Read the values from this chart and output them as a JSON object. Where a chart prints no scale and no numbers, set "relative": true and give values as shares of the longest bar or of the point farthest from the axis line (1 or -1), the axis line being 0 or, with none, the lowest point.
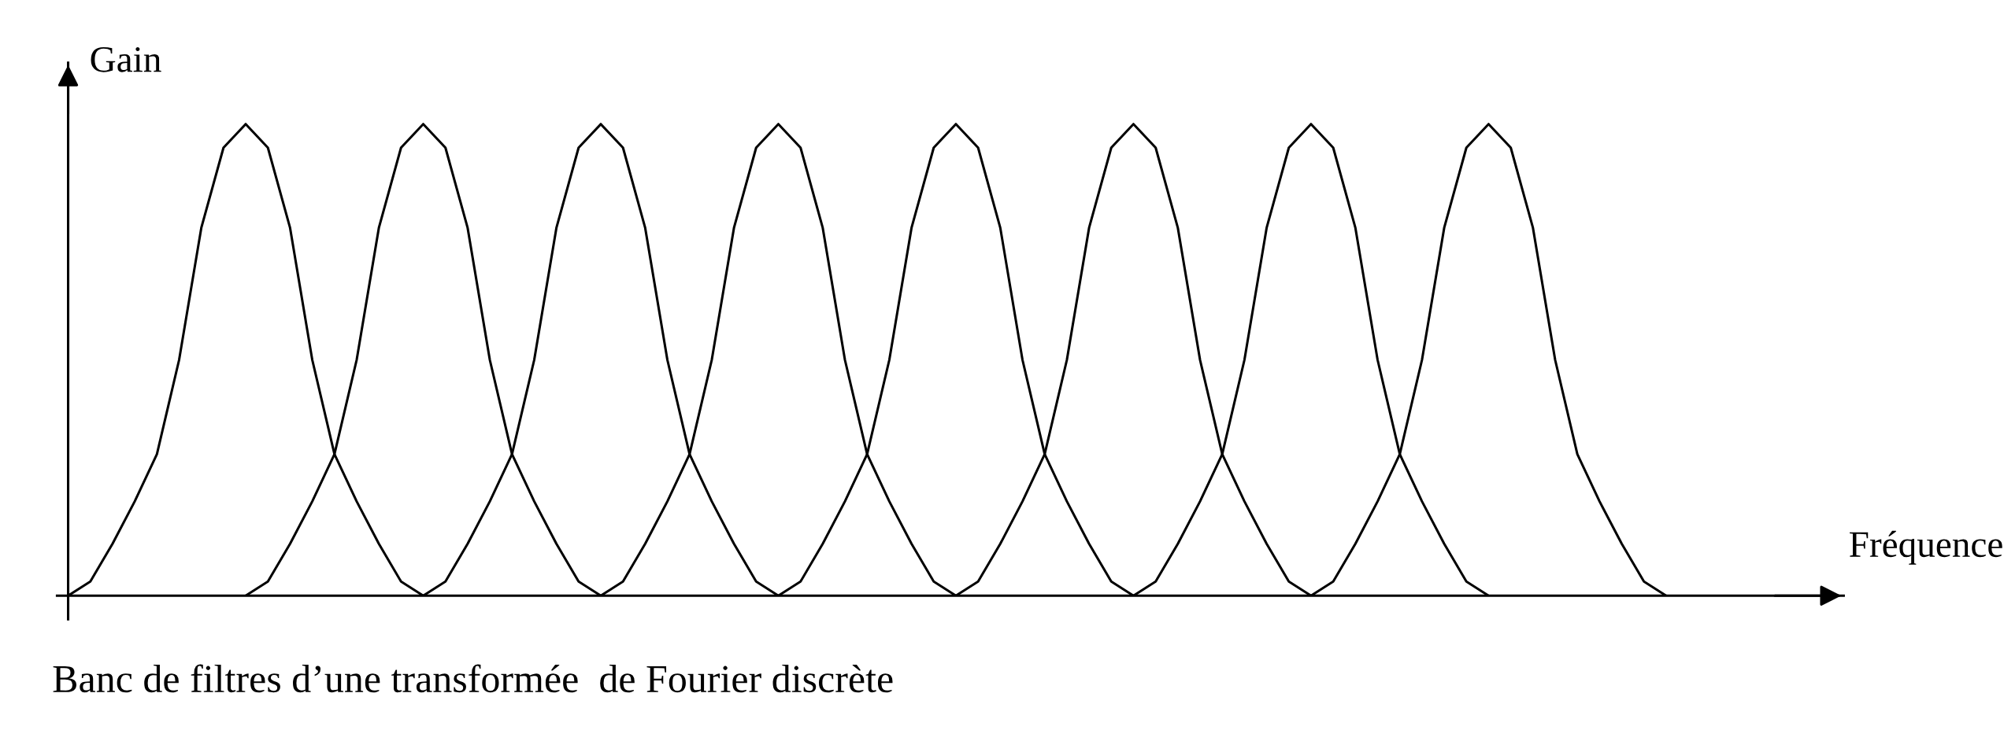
{
  "chart_data": {
    "type": "line",
    "relative": true,
    "xlabel": "Fréquence",
    "ylabel": "Gain",
    "annotations": [
      "Banc de filtres d’une transformée  de Fourier discrète"
    ],
    "categories": [
      null,
      null,
      null,
      null,
      null,
      null,
      null,
      null,
      null,
      null,
      null,
      null,
      null,
      null,
      null,
      null,
      null,
      null,
      null,
      null,
      null,
      null,
      null,
      null,
      null,
      null,
      null,
      null,
      null,
      null,
      null,
      null,
      null,
      null,
      null,
      null,
      null,
      null,
      null,
      null,
      null,
      null,
      null,
      null,
      null,
      null,
      null,
      null,
      null,
      null,
      null,
      null,
      null,
      null,
      null,
      null,
      null,
      null,
      null,
      null,
      null,
      null,
      null,
      null,
      null,
      null,
      null,
      null,
      null,
      null,
      null,
      null,
      null,
      null,
      null,
      null,
      null,
      null,
      null,
      null,
      null
    ],
    "line_style": "solid",
    "marker": "none",
    "grid": false,
    "legend": false,
    "series": [
      {
        "color": "#000000",
        "values": [
          0,
          0.03,
          0.11,
          0.2,
          0.3,
          0.5,
          0.78,
          0.95,
          1,
          0.95,
          0.78,
          0.5,
          0.3,
          0.2,
          0.11,
          0.03,
          0,
          null,
          null,
          null,
          null,
          null,
          null,
          null,
          null,
          null,
          null,
          null,
          null,
          null,
          null,
          null,
          null,
          null,
          null,
          null,
          null,
          null,
          null,
          null,
          null,
          null,
          null,
          null,
          null,
          null,
          null,
          null,
          null,
          null,
          null,
          null,
          null,
          null,
          null,
          null,
          null,
          null,
          null,
          null,
          null,
          null,
          null,
          null,
          null,
          null,
          null,
          null,
          null,
          null,
          null,
          null,
          null,
          null,
          null,
          null,
          null,
          null,
          null,
          null,
          null
        ]
      },
      {
        "color": "#000000",
        "values": [
          null,
          null,
          null,
          null,
          null,
          null,
          null,
          null,
          0,
          0.03,
          0.11,
          0.2,
          0.3,
          0.5,
          0.78,
          0.95,
          1,
          0.95,
          0.78,
          0.5,
          0.3,
          0.2,
          0.11,
          0.03,
          0,
          null,
          null,
          null,
          null,
          null,
          null,
          null,
          null,
          null,
          null,
          null,
          null,
          null,
          null,
          null,
          null,
          null,
          null,
          null,
          null,
          null,
          null,
          null,
          null,
          null,
          null,
          null,
          null,
          null,
          null,
          null,
          null,
          null,
          null,
          null,
          null,
          null,
          null,
          null,
          null,
          null,
          null,
          null,
          null,
          null,
          null,
          null,
          null,
          null,
          null,
          null,
          null,
          null,
          null,
          null,
          null
        ]
      },
      {
        "color": "#000000",
        "values": [
          null,
          null,
          null,
          null,
          null,
          null,
          null,
          null,
          null,
          null,
          null,
          null,
          null,
          null,
          null,
          null,
          0,
          0.03,
          0.11,
          0.2,
          0.3,
          0.5,
          0.78,
          0.95,
          1,
          0.95,
          0.78,
          0.5,
          0.3,
          0.2,
          0.11,
          0.03,
          0,
          null,
          null,
          null,
          null,
          null,
          null,
          null,
          null,
          null,
          null,
          null,
          null,
          null,
          null,
          null,
          null,
          null,
          null,
          null,
          null,
          null,
          null,
          null,
          null,
          null,
          null,
          null,
          null,
          null,
          null,
          null,
          null,
          null,
          null,
          null,
          null,
          null,
          null,
          null,
          null,
          null,
          null,
          null,
          null,
          null,
          null,
          null,
          null
        ]
      },
      {
        "color": "#000000",
        "values": [
          null,
          null,
          null,
          null,
          null,
          null,
          null,
          null,
          null,
          null,
          null,
          null,
          null,
          null,
          null,
          null,
          null,
          null,
          null,
          null,
          null,
          null,
          null,
          null,
          0,
          0.03,
          0.11,
          0.2,
          0.3,
          0.5,
          0.78,
          0.95,
          1,
          0.95,
          0.78,
          0.5,
          0.3,
          0.2,
          0.11,
          0.03,
          0,
          null,
          null,
          null,
          null,
          null,
          null,
          null,
          null,
          null,
          null,
          null,
          null,
          null,
          null,
          null,
          null,
          null,
          null,
          null,
          null,
          null,
          null,
          null,
          null,
          null,
          null,
          null,
          null,
          null,
          null,
          null,
          null,
          null,
          null,
          null,
          null,
          null,
          null,
          null,
          null
        ]
      },
      {
        "color": "#000000",
        "values": [
          null,
          null,
          null,
          null,
          null,
          null,
          null,
          null,
          null,
          null,
          null,
          null,
          null,
          null,
          null,
          null,
          null,
          null,
          null,
          null,
          null,
          null,
          null,
          null,
          null,
          null,
          null,
          null,
          null,
          null,
          null,
          null,
          0,
          0.03,
          0.11,
          0.2,
          0.3,
          0.5,
          0.78,
          0.95,
          1,
          0.95,
          0.78,
          0.5,
          0.3,
          0.2,
          0.11,
          0.03,
          0,
          null,
          null,
          null,
          null,
          null,
          null,
          null,
          null,
          null,
          null,
          null,
          null,
          null,
          null,
          null,
          null,
          null,
          null,
          null,
          null,
          null,
          null,
          null,
          null,
          null,
          null,
          null,
          null,
          null,
          null,
          null,
          null
        ]
      },
      {
        "color": "#000000",
        "values": [
          null,
          null,
          null,
          null,
          null,
          null,
          null,
          null,
          null,
          null,
          null,
          null,
          null,
          null,
          null,
          null,
          null,
          null,
          null,
          null,
          null,
          null,
          null,
          null,
          null,
          null,
          null,
          null,
          null,
          null,
          null,
          null,
          null,
          null,
          null,
          null,
          null,
          null,
          null,
          null,
          0,
          0.03,
          0.11,
          0.2,
          0.3,
          0.5,
          0.78,
          0.95,
          1,
          0.95,
          0.78,
          0.5,
          0.3,
          0.2,
          0.11,
          0.03,
          0,
          null,
          null,
          null,
          null,
          null,
          null,
          null,
          null,
          null,
          null,
          null,
          null,
          null,
          null,
          null,
          null,
          null,
          null,
          null,
          null,
          null,
          null,
          null,
          null
        ]
      },
      {
        "color": "#000000",
        "values": [
          null,
          null,
          null,
          null,
          null,
          null,
          null,
          null,
          null,
          null,
          null,
          null,
          null,
          null,
          null,
          null,
          null,
          null,
          null,
          null,
          null,
          null,
          null,
          null,
          null,
          null,
          null,
          null,
          null,
          null,
          null,
          null,
          null,
          null,
          null,
          null,
          null,
          null,
          null,
          null,
          null,
          null,
          null,
          null,
          null,
          null,
          null,
          null,
          0,
          0.03,
          0.11,
          0.2,
          0.3,
          0.5,
          0.78,
          0.95,
          1,
          0.95,
          0.78,
          0.5,
          0.3,
          0.2,
          0.11,
          0.03,
          0,
          null,
          null,
          null,
          null,
          null,
          null,
          null,
          null,
          null,
          null,
          null,
          null,
          null,
          null,
          null,
          null
        ]
      },
      {
        "color": "#000000",
        "values": [
          null,
          null,
          null,
          null,
          null,
          null,
          null,
          null,
          null,
          null,
          null,
          null,
          null,
          null,
          null,
          null,
          null,
          null,
          null,
          null,
          null,
          null,
          null,
          null,
          null,
          null,
          null,
          null,
          null,
          null,
          null,
          null,
          null,
          null,
          null,
          null,
          null,
          null,
          null,
          null,
          null,
          null,
          null,
          null,
          null,
          null,
          null,
          null,
          null,
          null,
          null,
          null,
          null,
          null,
          null,
          null,
          0,
          0.03,
          0.11,
          0.2,
          0.3,
          0.5,
          0.78,
          0.95,
          1,
          0.95,
          0.78,
          0.5,
          0.3,
          0.2,
          0.11,
          0.03,
          0,
          null,
          null,
          null,
          null,
          null,
          null,
          null,
          null
        ]
      }
    ]
  }
}
